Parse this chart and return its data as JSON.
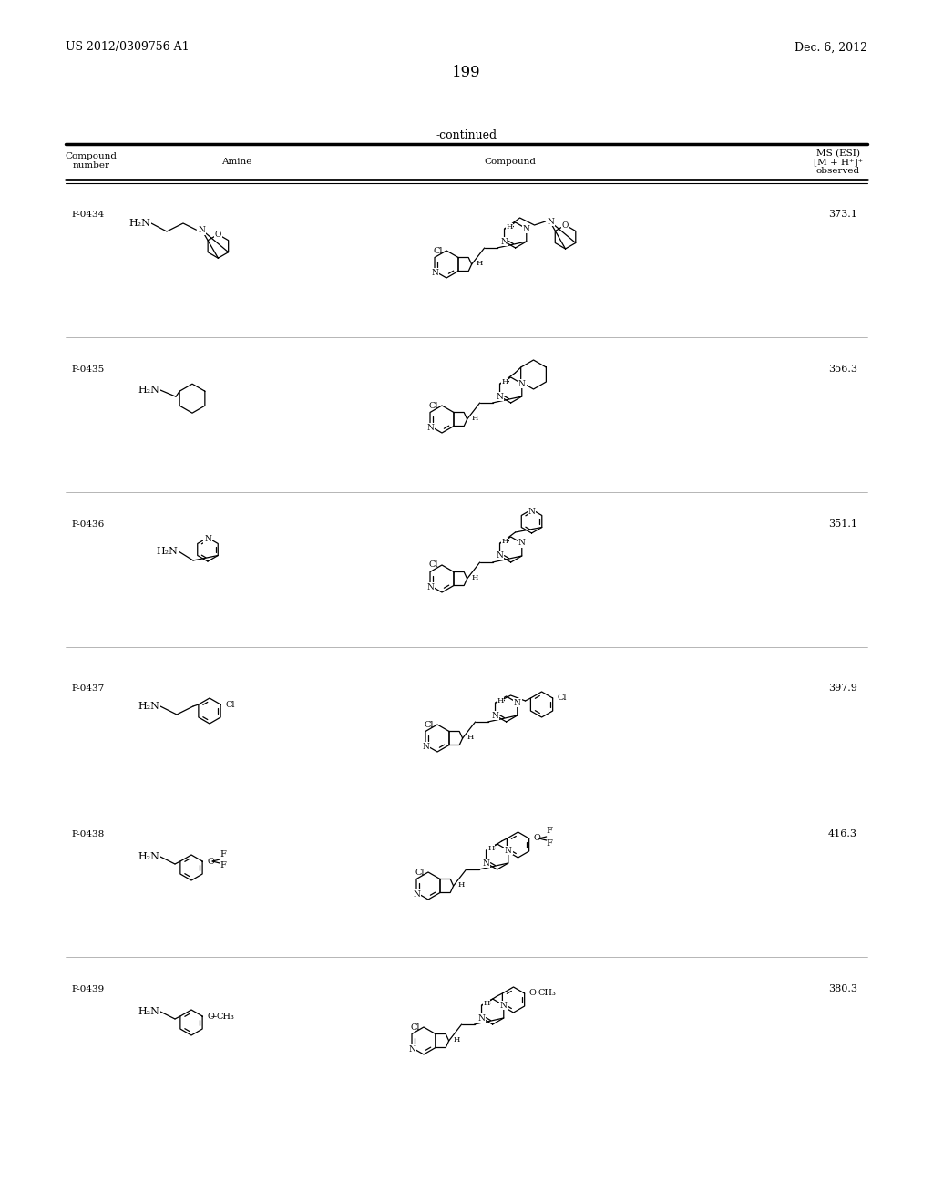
{
  "page_number": "199",
  "patent_number": "US 2012/0309756 A1",
  "date": "Dec. 6, 2012",
  "continued_label": "-continued",
  "col_headers": [
    "Compound\nnumber",
    "Amine",
    "Compound",
    "MS (ESI)\n[M + H⁺]⁺\nobserved"
  ],
  "compounds": [
    {
      "id": "P-0434",
      "ms": "373.1"
    },
    {
      "id": "P-0435",
      "ms": "356.3"
    },
    {
      "id": "P-0436",
      "ms": "351.1"
    },
    {
      "id": "P-0437",
      "ms": "397.9"
    },
    {
      "id": "P-0438",
      "ms": "416.3"
    },
    {
      "id": "P-0439",
      "ms": "380.3"
    }
  ],
  "bg_color": "#ffffff",
  "text_color": "#000000"
}
